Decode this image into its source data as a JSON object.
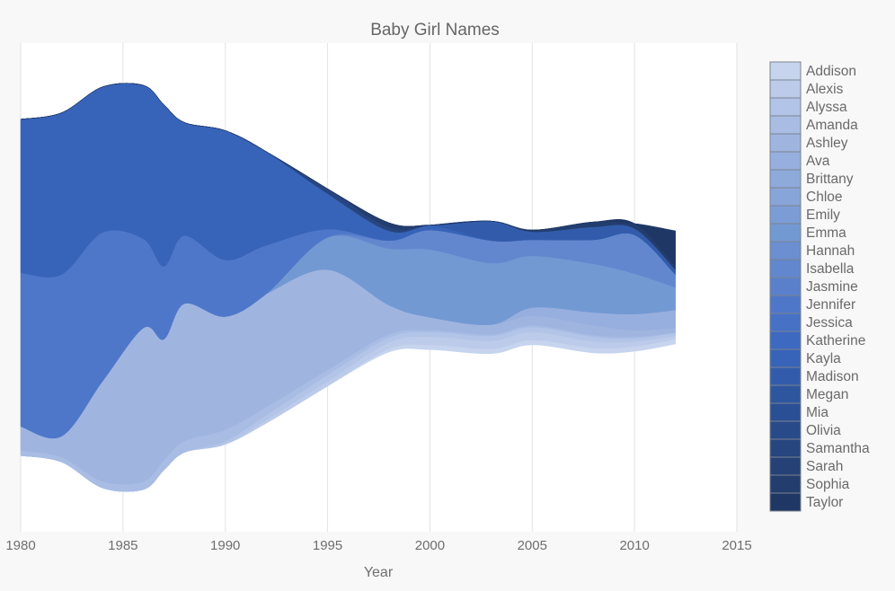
{
  "chart_data": {
    "type": "area",
    "subtype": "streamgraph",
    "title": "Baby Girl Names",
    "xlabel": "Year",
    "ylabel": "",
    "xlim": [
      1980,
      2015
    ],
    "x_ticks": [
      "1980",
      "1985",
      "1990",
      "1995",
      "2000",
      "2005",
      "2010",
      "2015"
    ],
    "grid": "vertical",
    "legend_position": "right",
    "x": [
      1980,
      1982,
      1984,
      1986,
      1987,
      1988,
      1990,
      1992,
      1995,
      1998,
      2000,
      2003,
      2005,
      2008,
      2010,
      2012
    ],
    "series": [
      {
        "name": "Addison",
        "color": "#c6d4ee",
        "values": [
          0,
          0,
          0,
          0,
          0,
          0,
          0,
          0,
          0,
          2,
          3,
          3,
          3,
          3,
          3,
          3
        ]
      },
      {
        "name": "Alexis",
        "color": "#bccbea",
        "values": [
          0,
          0,
          0,
          0,
          0,
          0,
          0,
          2,
          3,
          4,
          5,
          5,
          5,
          4,
          3,
          2
        ]
      },
      {
        "name": "Alyssa",
        "color": "#b2c4e7",
        "values": [
          0,
          0,
          0,
          0,
          0,
          0,
          2,
          3,
          4,
          3,
          3,
          3,
          3,
          3,
          2,
          2
        ]
      },
      {
        "name": "Amanda",
        "color": "#a8bce4",
        "values": [
          3,
          3,
          4,
          5,
          6,
          7,
          7,
          5,
          3,
          2,
          1,
          1,
          1,
          1,
          1,
          0
        ]
      },
      {
        "name": "Ashley",
        "color": "#9fb5e0",
        "values": [
          15,
          13,
          62,
          95,
          75,
          85,
          70,
          70,
          62,
          18,
          8,
          6,
          6,
          6,
          4,
          3
        ]
      },
      {
        "name": "Ava",
        "color": "#97afde",
        "values": [
          0,
          0,
          0,
          0,
          0,
          0,
          0,
          0,
          0,
          0,
          0,
          0,
          5,
          8,
          10,
          11
        ]
      },
      {
        "name": "Brittany",
        "color": "#8eaadb",
        "values": [
          0,
          0,
          0,
          0,
          0,
          0,
          0,
          0,
          0,
          0,
          0,
          0,
          0,
          0,
          0,
          0
        ]
      },
      {
        "name": "Chloe",
        "color": "#88a5d9",
        "values": [
          0,
          0,
          0,
          0,
          0,
          0,
          0,
          0,
          0,
          0,
          0,
          0,
          0,
          0,
          0,
          0
        ]
      },
      {
        "name": "Emily",
        "color": "#7c9cd6",
        "values": [
          0,
          0,
          0,
          0,
          0,
          0,
          0,
          0,
          0,
          0,
          0,
          0,
          0,
          0,
          0,
          0
        ]
      },
      {
        "name": "Emma",
        "color": "#7399d3",
        "values": [
          0,
          0,
          0,
          0,
          0,
          0,
          0,
          0,
          20,
          35,
          42,
          38,
          32,
          30,
          25,
          14
        ]
      },
      {
        "name": "Hannah",
        "color": "#6b8fd0",
        "values": [
          0,
          0,
          0,
          0,
          0,
          0,
          0,
          0,
          0,
          0,
          0,
          0,
          0,
          0,
          0,
          0
        ]
      },
      {
        "name": "Isabella",
        "color": "#6287ce",
        "values": [
          0,
          0,
          0,
          0,
          0,
          0,
          0,
          0,
          0,
          5,
          12,
          14,
          10,
          15,
          24,
          8
        ]
      },
      {
        "name": "Jasmine",
        "color": "#5a80cc",
        "values": [
          0,
          0,
          0,
          0,
          0,
          0,
          0,
          0,
          0,
          0,
          0,
          0,
          0,
          0,
          0,
          0
        ]
      },
      {
        "name": "Jennifer",
        "color": "#4f77c9",
        "values": [
          95,
          100,
          92,
          55,
          45,
          42,
          35,
          30,
          5,
          0,
          0,
          0,
          0,
          0,
          0,
          0
        ]
      },
      {
        "name": "Jessica",
        "color": "#4671c5",
        "values": [
          0,
          0,
          0,
          0,
          0,
          0,
          0,
          0,
          0,
          0,
          0,
          0,
          0,
          0,
          0,
          0
        ]
      },
      {
        "name": "Katherine",
        "color": "#3d69c0",
        "values": [
          0,
          0,
          0,
          0,
          0,
          0,
          0,
          0,
          0,
          0,
          0,
          0,
          0,
          0,
          0,
          0
        ]
      },
      {
        "name": "Kayla",
        "color": "#3763b8",
        "values": [
          95,
          100,
          90,
          95,
          100,
          70,
          80,
          58,
          22,
          6,
          3,
          0,
          0,
          0,
          0,
          0
        ]
      },
      {
        "name": "Madison",
        "color": "#325cab",
        "values": [
          0,
          0,
          0,
          0,
          0,
          0,
          0,
          0,
          0,
          0,
          0,
          12,
          5,
          8,
          4,
          3
        ]
      },
      {
        "name": "Megan",
        "color": "#2e569f",
        "values": [
          0,
          0,
          0,
          0,
          0,
          0,
          0,
          0,
          0,
          0,
          0,
          0,
          0,
          0,
          0,
          0
        ]
      },
      {
        "name": "Mia",
        "color": "#2b4f94",
        "values": [
          0,
          0,
          0,
          0,
          0,
          0,
          0,
          0,
          0,
          0,
          0,
          0,
          0,
          0,
          0,
          0
        ]
      },
      {
        "name": "Olivia",
        "color": "#294a89",
        "values": [
          0,
          0,
          0,
          0,
          0,
          0,
          0,
          0,
          0,
          0,
          0,
          0,
          0,
          0,
          0,
          0
        ]
      },
      {
        "name": "Samantha",
        "color": "#27457f",
        "values": [
          0,
          0,
          0,
          0,
          0,
          0,
          0,
          0,
          3,
          2,
          0,
          0,
          0,
          0,
          0,
          0
        ]
      },
      {
        "name": "Sarah",
        "color": "#254176",
        "values": [
          0,
          0,
          0,
          0,
          0,
          0,
          0,
          0,
          0,
          0,
          0,
          0,
          0,
          0,
          0,
          0
        ]
      },
      {
        "name": "Sophia",
        "color": "#233d6e",
        "values": [
          0,
          0,
          0,
          0,
          0,
          0,
          0,
          0,
          0,
          3,
          0,
          0,
          1,
          3,
          3,
          2
        ]
      },
      {
        "name": "Taylor",
        "color": "#1f3765",
        "values": [
          0,
          0,
          0,
          0,
          0,
          0,
          0,
          0,
          0,
          0,
          0,
          0,
          0,
          0,
          0,
          22
        ]
      }
    ]
  }
}
